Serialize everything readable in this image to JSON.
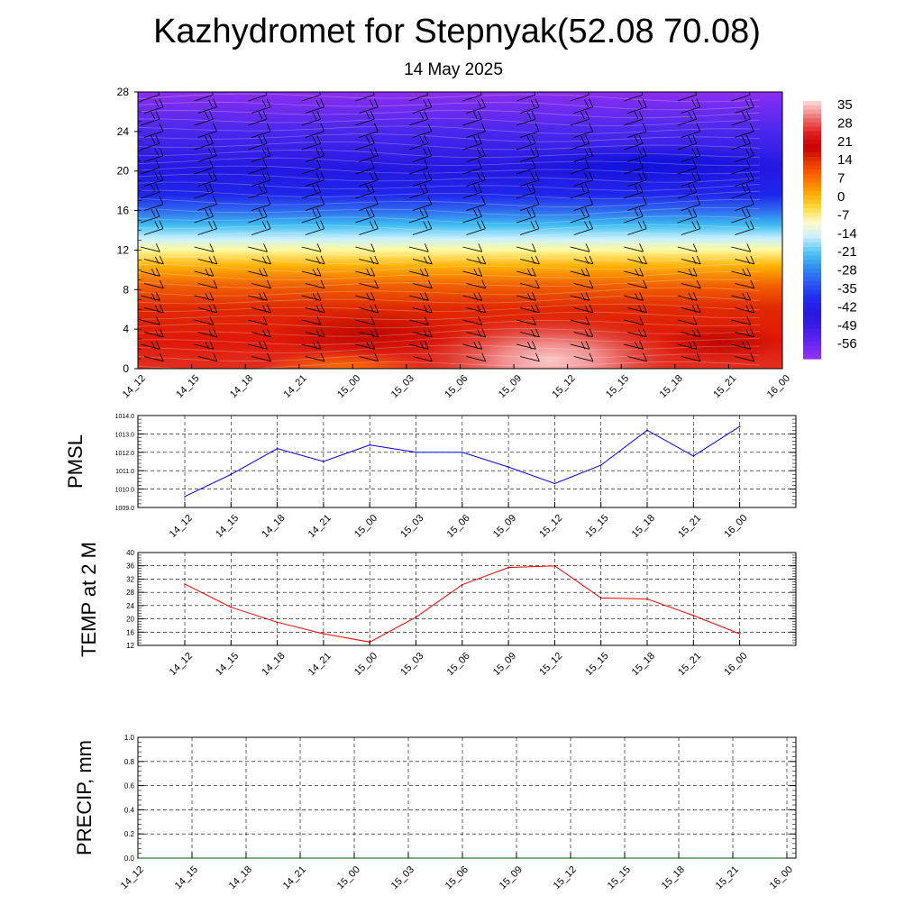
{
  "title": "Kazhydromet for Stepnyak(52.08 70.08)",
  "subtitle": "14 May 2025",
  "time_labels": [
    "14_12",
    "14_15",
    "14_18",
    "14_21",
    "15_00",
    "15_03",
    "15_06",
    "15_09",
    "15_12",
    "15_15",
    "15_18",
    "15_21",
    "16_00"
  ],
  "chart_data": [
    {
      "type": "heatmap",
      "name": "temperature-profile",
      "title": "",
      "xlabel": "",
      "ylabel": "",
      "x": [
        "14_12",
        "14_15",
        "14_18",
        "14_21",
        "15_00",
        "15_03",
        "15_06",
        "15_09",
        "15_12",
        "15_15",
        "15_18",
        "15_21",
        "16_00"
      ],
      "yticks": [
        0,
        4,
        8,
        12,
        16,
        20,
        24,
        28
      ],
      "ylim": [
        0,
        28
      ],
      "colorbar": {
        "labels": [
          "35",
          "28",
          "21",
          "14",
          "7",
          "0",
          "-7",
          "-14",
          "-21",
          "-28",
          "-35",
          "-42",
          "-49",
          "-56"
        ],
        "colors": [
          "#fbb4b4",
          "#e83030",
          "#d00000",
          "#ee3a00",
          "#ff7a00",
          "#ffb300",
          "#ffe97a",
          "#fffde8",
          "#b8ecff",
          "#38b8f2",
          "#2c6ef0",
          "#1f2ef5",
          "#2a1ce8",
          "#8a2ef0"
        ]
      },
      "wind_barbs": true
    },
    {
      "type": "line",
      "name": "pmsl",
      "ylabel": "PMSL",
      "x": [
        "14_12",
        "14_15",
        "14_18",
        "14_21",
        "15_00",
        "15_03",
        "15_06",
        "15_09",
        "15_12",
        "15_15",
        "15_18",
        "15_21",
        "16_00"
      ],
      "values": [
        1009.6,
        1010.8,
        1012.2,
        1011.5,
        1012.4,
        1012.0,
        1012.0,
        1011.2,
        1010.3,
        1011.3,
        1013.2,
        1011.8,
        1013.4
      ],
      "ylim": [
        1009.0,
        1014.0
      ],
      "yticks": [
        "1009.0",
        "1010.0",
        "1011.0",
        "1012.0",
        "1013.0",
        "1014.0"
      ],
      "grid": true,
      "color": "#0000ff"
    },
    {
      "type": "line",
      "name": "temp-2m",
      "ylabel": "TEMP at 2 M",
      "x": [
        "14_12",
        "14_15",
        "14_18",
        "14_21",
        "15_00",
        "15_03",
        "15_06",
        "15_09",
        "15_12",
        "15_15",
        "15_18",
        "15_21",
        "16_00"
      ],
      "values": [
        30.5,
        23.5,
        19.0,
        15.5,
        13.0,
        20.5,
        30.3,
        35.5,
        36.0,
        26.3,
        26.0,
        21.0,
        15.5
      ],
      "ylim": [
        12,
        40
      ],
      "yticks": [
        "12",
        "16",
        "20",
        "24",
        "28",
        "32",
        "36",
        "40"
      ],
      "grid": true,
      "color": "#ff0000"
    },
    {
      "type": "line",
      "name": "precip",
      "ylabel": "PRECIP, mm",
      "x": [
        "14_12",
        "14_15",
        "14_18",
        "14_21",
        "15_00",
        "15_03",
        "15_06",
        "15_09",
        "15_12",
        "15_15",
        "15_18",
        "15_21",
        "16_00"
      ],
      "values": [
        0,
        0,
        0,
        0,
        0,
        0,
        0,
        0,
        0,
        0,
        0,
        0,
        0
      ],
      "ylim": [
        0.0,
        1.0
      ],
      "yticks": [
        "0.0",
        "0.2",
        "0.4",
        "0.6",
        "0.8",
        "1.0"
      ],
      "grid": true,
      "color": "#006400"
    }
  ]
}
